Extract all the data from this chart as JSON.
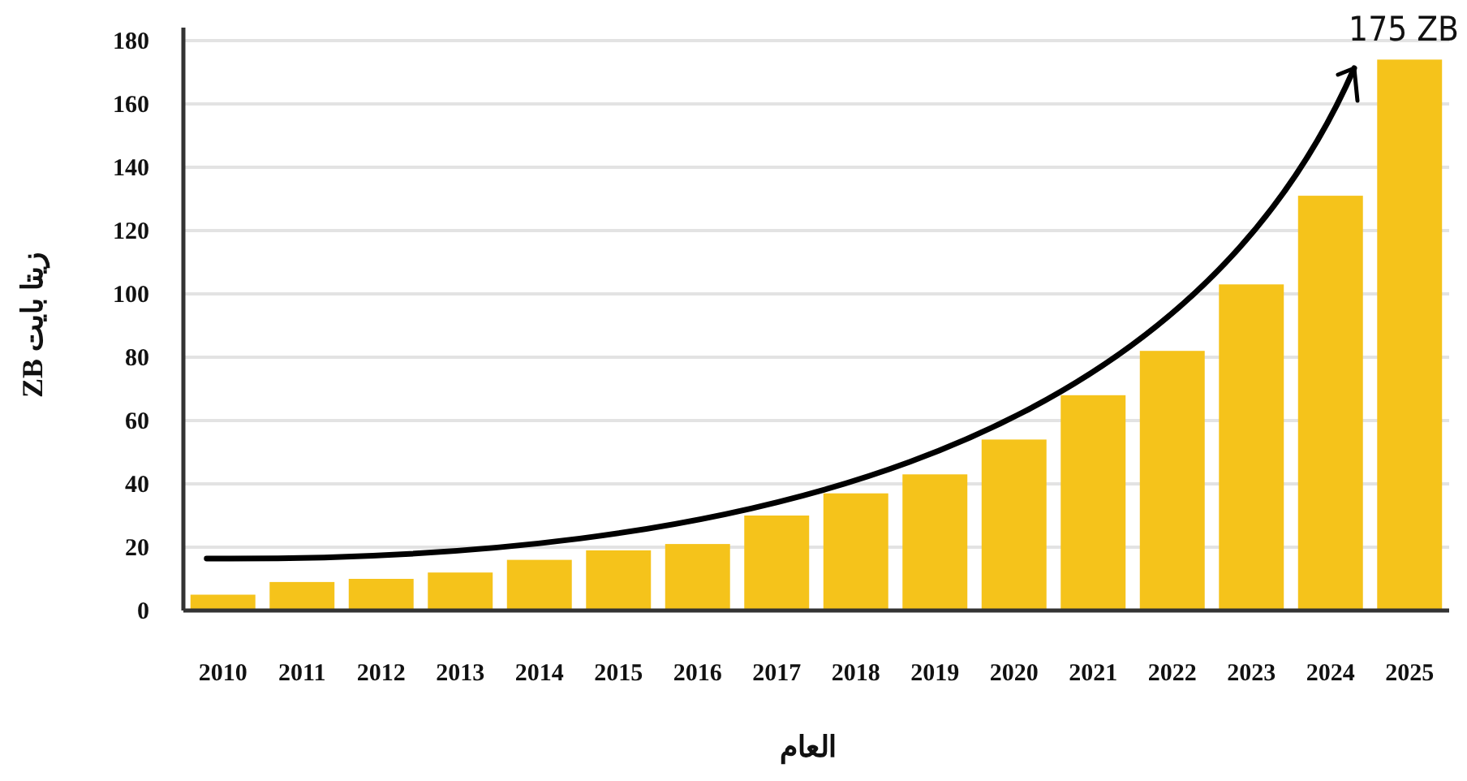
{
  "chart_data": {
    "type": "bar",
    "categories": [
      "2010",
      "2011",
      "2012",
      "2013",
      "2014",
      "2015",
      "2016",
      "2017",
      "2018",
      "2019",
      "2020",
      "2021",
      "2022",
      "2023",
      "2024",
      "2025"
    ],
    "values": [
      5,
      9,
      10,
      12,
      16,
      19,
      21,
      30,
      37,
      43,
      54,
      68,
      82,
      103,
      131,
      174
    ],
    "color": "#f5c31b",
    "xlabel": "العام",
    "ylabel": "ZB  زيتا بايت",
    "ylim": [
      0,
      180
    ],
    "yticks": [
      0,
      20,
      40,
      60,
      80,
      100,
      120,
      140,
      160,
      180
    ],
    "grid": "y",
    "annotations": [
      "175 ZB"
    ]
  }
}
